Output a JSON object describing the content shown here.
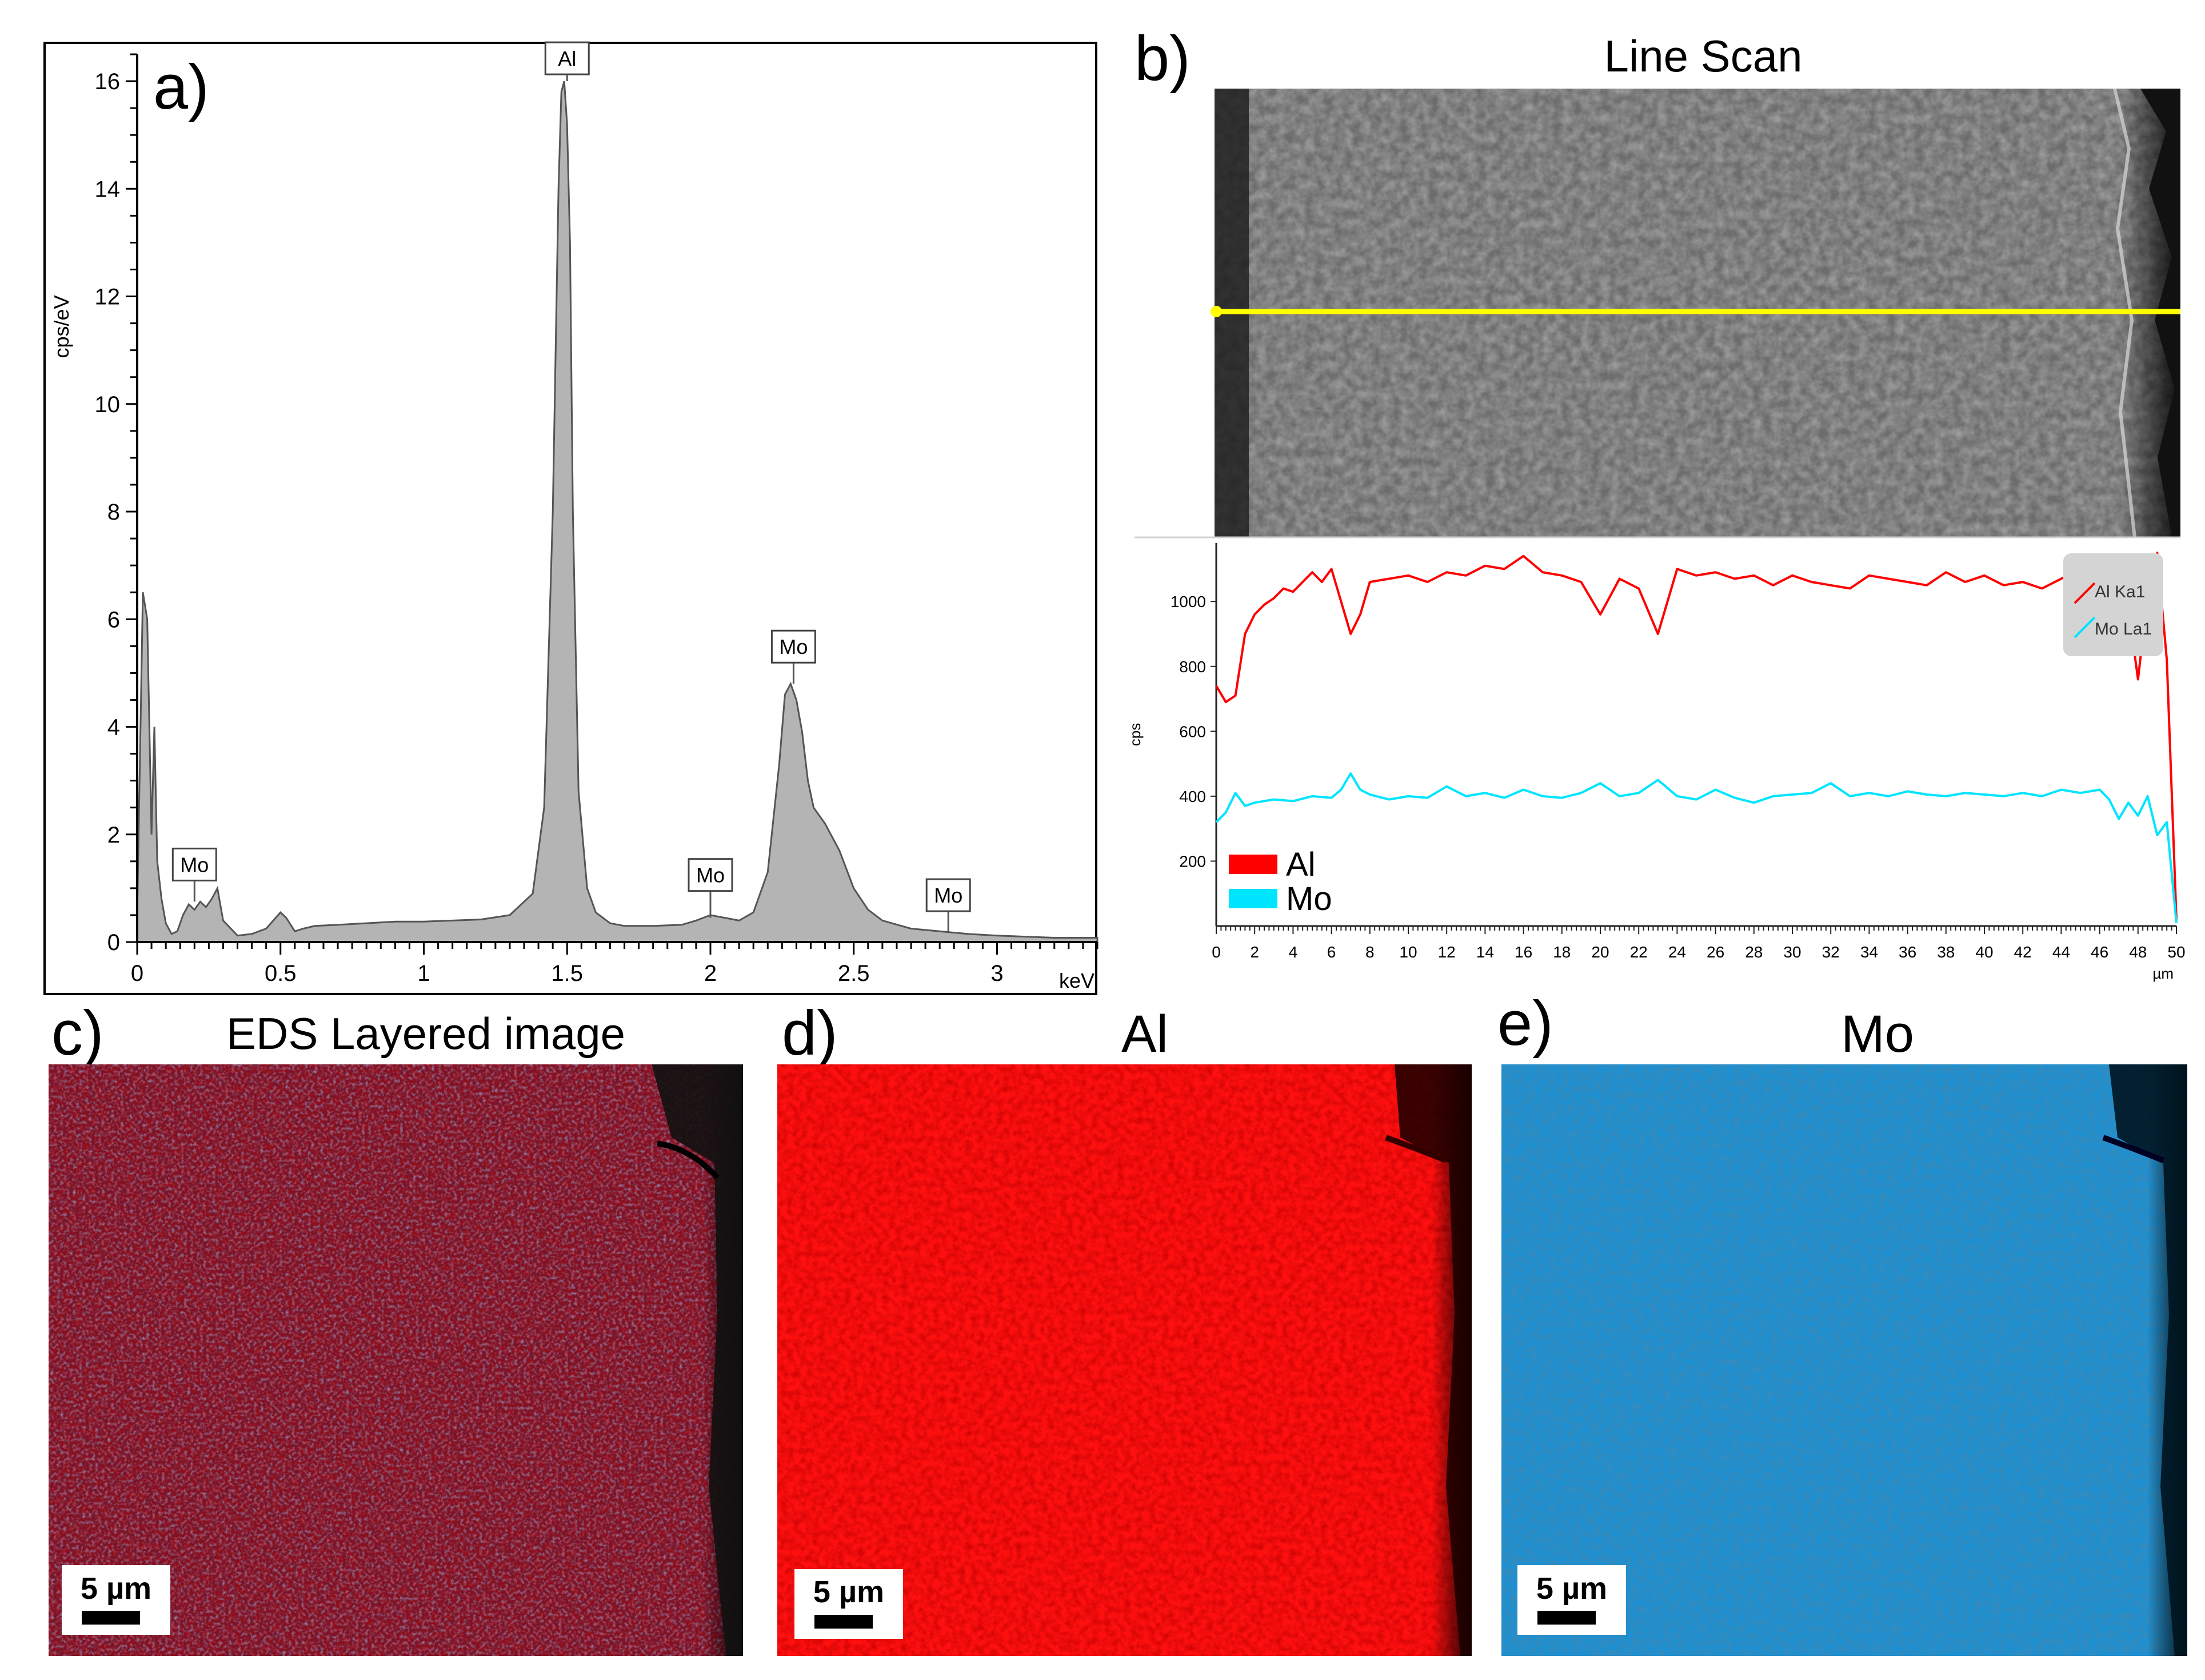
{
  "colors": {
    "al": "#ff0000",
    "mo": "#00e5ff",
    "mo_map": "#1e8fd0",
    "scan_line": "#ffff00",
    "spectrum_fill": "#b4b4b4"
  },
  "panels": {
    "a": {
      "letter": "a)"
    },
    "b": {
      "letter": "b)",
      "title": "Line Scan"
    },
    "c": {
      "letter": "c)",
      "title": "EDS Layered image",
      "scalebar": "5 µm"
    },
    "d": {
      "letter": "d)",
      "title": "Al",
      "scalebar": "5 µm"
    },
    "e": {
      "letter": "e)",
      "title": "Mo",
      "scalebar": "5 µm"
    }
  },
  "chart_data": [
    {
      "id": "eds-spectrum",
      "type": "area",
      "title": "",
      "xlabel": "keV",
      "ylabel": "cps/eV",
      "xlim": [
        0,
        3.35
      ],
      "ylim": [
        0,
        16.5
      ],
      "xticks": [
        0,
        0.5,
        1,
        1.5,
        2,
        2.5,
        3
      ],
      "xtick_labels": [
        "0",
        "0.5",
        "1",
        "1.5",
        "2",
        "2.5",
        "3"
      ],
      "yticks": [
        0,
        2,
        4,
        6,
        8,
        10,
        12,
        14,
        16
      ],
      "ytick_labels": [
        "0",
        "2",
        "4",
        "6",
        "8",
        "10",
        "12",
        "14",
        "16"
      ],
      "x": [
        0,
        0.02,
        0.035,
        0.05,
        0.06,
        0.07,
        0.085,
        0.1,
        0.12,
        0.14,
        0.16,
        0.18,
        0.2,
        0.22,
        0.24,
        0.26,
        0.28,
        0.3,
        0.35,
        0.4,
        0.45,
        0.5,
        0.52,
        0.55,
        0.58,
        0.62,
        0.7,
        0.8,
        0.9,
        1.0,
        1.1,
        1.2,
        1.3,
        1.38,
        1.42,
        1.45,
        1.47,
        1.48,
        1.49,
        1.5,
        1.51,
        1.52,
        1.54,
        1.57,
        1.6,
        1.65,
        1.7,
        1.8,
        1.9,
        1.95,
        2.0,
        2.05,
        2.1,
        2.15,
        2.2,
        2.24,
        2.26,
        2.28,
        2.3,
        2.32,
        2.34,
        2.36,
        2.4,
        2.45,
        2.5,
        2.55,
        2.6,
        2.7,
        2.8,
        2.9,
        3.0,
        3.1,
        3.2,
        3.35
      ],
      "y": [
        0.5,
        6.5,
        6.0,
        2.0,
        4.0,
        1.5,
        0.8,
        0.35,
        0.15,
        0.2,
        0.5,
        0.7,
        0.6,
        0.75,
        0.65,
        0.8,
        1.0,
        0.4,
        0.12,
        0.15,
        0.25,
        0.55,
        0.45,
        0.2,
        0.25,
        0.3,
        0.32,
        0.35,
        0.38,
        0.38,
        0.4,
        0.42,
        0.5,
        0.9,
        2.5,
        8.0,
        14.0,
        15.8,
        16.0,
        15.2,
        13.0,
        8.0,
        2.8,
        1.0,
        0.55,
        0.35,
        0.3,
        0.3,
        0.32,
        0.4,
        0.5,
        0.45,
        0.4,
        0.55,
        1.3,
        3.3,
        4.6,
        4.8,
        4.5,
        3.9,
        3.0,
        2.5,
        2.2,
        1.7,
        1.0,
        0.6,
        0.4,
        0.25,
        0.2,
        0.15,
        0.12,
        0.1,
        0.08,
        0.08
      ],
      "annotations": [
        {
          "text": "Al",
          "x": 1.5,
          "y": 16.0
        },
        {
          "text": "Mo",
          "x": 0.2,
          "y": 0.75
        },
        {
          "text": "Mo",
          "x": 2.0,
          "y": 0.45
        },
        {
          "text": "Mo",
          "x": 2.29,
          "y": 4.8
        },
        {
          "text": "Mo",
          "x": 2.83,
          "y": 0.18
        }
      ]
    },
    {
      "id": "line-scan-profile",
      "type": "line",
      "title": "Line Scan",
      "xlabel": "µm",
      "ylabel": "cps",
      "xlim": [
        0,
        50
      ],
      "ylim": [
        0,
        1180
      ],
      "xticks": [
        0,
        2,
        4,
        6,
        8,
        10,
        12,
        14,
        16,
        18,
        20,
        22,
        24,
        26,
        28,
        30,
        32,
        34,
        36,
        38,
        40,
        42,
        44,
        46,
        48,
        50
      ],
      "xtick_labels": [
        "0",
        "2",
        "4",
        "6",
        "8",
        "10",
        "12",
        "14",
        "16",
        "18",
        "20",
        "22",
        "24",
        "26",
        "28",
        "30",
        "32",
        "34",
        "36",
        "38",
        "40",
        "42",
        "44",
        "46",
        "48",
        "50"
      ],
      "yticks": [
        200,
        400,
        600,
        800,
        1000
      ],
      "ytick_labels": [
        "200",
        "400",
        "600",
        "800",
        "1000"
      ],
      "legend": {
        "position": "bottom-left",
        "entries": [
          "Al",
          "Mo"
        ]
      },
      "inset_legend": {
        "position": "top-right",
        "entries": [
          "Al Ka1",
          "Mo La1"
        ]
      },
      "series": [
        {
          "name": "Al",
          "x": [
            0,
            0.5,
            1,
            1.5,
            2,
            2.5,
            3,
            3.5,
            4,
            4.5,
            5,
            5.5,
            6,
            6.5,
            7,
            7.5,
            8,
            9,
            10,
            11,
            12,
            13,
            14,
            15,
            16,
            17,
            18,
            19,
            20,
            21,
            22,
            23,
            24,
            25,
            26,
            27,
            28,
            29,
            30,
            31,
            32,
            33,
            34,
            35,
            36,
            37,
            38,
            39,
            40,
            41,
            42,
            43,
            44,
            45,
            46,
            46.5,
            47,
            47.5,
            48,
            48.5,
            49,
            49.5,
            50
          ],
          "y": [
            740,
            690,
            710,
            900,
            960,
            990,
            1010,
            1040,
            1030,
            1060,
            1090,
            1060,
            1100,
            1000,
            900,
            960,
            1060,
            1070,
            1080,
            1060,
            1090,
            1080,
            1110,
            1100,
            1140,
            1090,
            1080,
            1060,
            960,
            1070,
            1040,
            900,
            1100,
            1080,
            1090,
            1070,
            1080,
            1050,
            1080,
            1060,
            1050,
            1040,
            1080,
            1070,
            1060,
            1050,
            1090,
            1060,
            1080,
            1050,
            1060,
            1040,
            1070,
            1100,
            1080,
            990,
            1060,
            980,
            760,
            1020,
            1150,
            820,
            20
          ]
        },
        {
          "name": "Mo",
          "x": [
            0,
            0.5,
            1,
            1.5,
            2,
            3,
            4,
            5,
            6,
            6.5,
            7,
            7.5,
            8,
            9,
            10,
            11,
            12,
            13,
            14,
            15,
            16,
            17,
            18,
            19,
            20,
            21,
            22,
            23,
            24,
            25,
            26,
            27,
            28,
            29,
            30,
            31,
            32,
            33,
            34,
            35,
            36,
            37,
            38,
            39,
            40,
            41,
            42,
            43,
            44,
            45,
            46,
            46.5,
            47,
            47.5,
            48,
            48.5,
            49,
            49.5,
            50
          ],
          "y": [
            320,
            350,
            410,
            370,
            380,
            390,
            385,
            400,
            395,
            420,
            470,
            420,
            405,
            390,
            400,
            395,
            430,
            400,
            410,
            395,
            420,
            400,
            395,
            410,
            440,
            400,
            410,
            450,
            400,
            390,
            420,
            395,
            380,
            400,
            405,
            410,
            440,
            400,
            410,
            400,
            415,
            405,
            400,
            410,
            405,
            400,
            410,
            400,
            420,
            410,
            420,
            390,
            330,
            380,
            340,
            400,
            280,
            320,
            10
          ]
        }
      ]
    }
  ]
}
